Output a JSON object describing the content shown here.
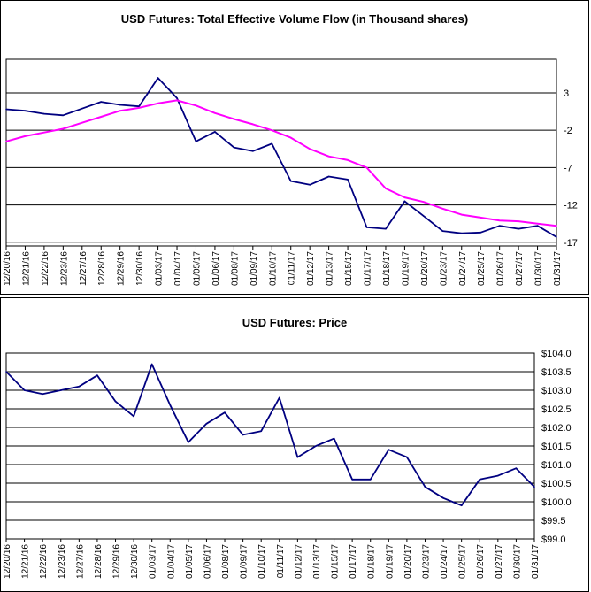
{
  "colors": {
    "volume": "#000080",
    "ma": "#ff00ff",
    "price": "#000080",
    "grid": "#000000"
  },
  "chart_data": [
    {
      "type": "line",
      "title": "USD Futures: Total Effective Volume Flow (in Thousand shares)",
      "categories": [
        "12/20/16",
        "12/21/16",
        "12/22/16",
        "12/23/16",
        "12/27/16",
        "12/28/16",
        "12/29/16",
        "12/30/16",
        "01/03/17",
        "01/04/17",
        "01/05/17",
        "01/06/17",
        "01/08/17",
        "01/09/17",
        "01/10/17",
        "01/11/17",
        "01/12/17",
        "01/13/17",
        "01/15/17",
        "01/17/17",
        "01/18/17",
        "01/19/17",
        "01/20/17",
        "01/23/17",
        "01/24/17",
        "01/25/17",
        "01/26/17",
        "01/27/17",
        "01/30/17",
        "01/31/17"
      ],
      "y_ticks": [
        3,
        -2,
        -7,
        -12,
        -17
      ],
      "ylim": [
        -17.5,
        7.5
      ],
      "grid": true,
      "series": [
        {
          "role": "volume",
          "values": [
            0.8,
            0.6,
            0.2,
            0.0,
            0.9,
            1.8,
            1.4,
            1.2,
            5.0,
            2.3,
            -3.5,
            -2.2,
            -4.3,
            -4.8,
            -3.8,
            -8.8,
            -9.3,
            -8.2,
            -8.6,
            -15.0,
            -15.2,
            -11.5,
            -13.5,
            -15.5,
            -15.8,
            -15.7,
            -14.8,
            -15.2,
            -14.8,
            -16.3
          ]
        },
        {
          "role": "moving-average",
          "values": [
            -3.5,
            -2.8,
            -2.3,
            -1.8,
            -1.0,
            -0.2,
            0.6,
            1.0,
            1.6,
            2.0,
            1.3,
            0.3,
            -0.5,
            -1.2,
            -2.0,
            -3.0,
            -4.5,
            -5.5,
            -6.0,
            -7.0,
            -9.8,
            -11.0,
            -11.6,
            -12.5,
            -13.3,
            -13.7,
            -14.1,
            -14.2,
            -14.5,
            -14.8
          ]
        }
      ]
    },
    {
      "type": "line",
      "title": "USD Futures: Price",
      "categories": [
        "12/20/16",
        "12/21/16",
        "12/22/16",
        "12/23/16",
        "12/27/16",
        "12/28/16",
        "12/29/16",
        "12/30/16",
        "01/03/17",
        "01/04/17",
        "01/05/17",
        "01/06/17",
        "01/08/17",
        "01/09/17",
        "01/10/17",
        "01/11/17",
        "01/12/17",
        "01/13/17",
        "01/15/17",
        "01/17/17",
        "01/18/17",
        "01/19/17",
        "01/20/17",
        "01/23/17",
        "01/24/17",
        "01/25/17",
        "01/26/17",
        "01/27/17",
        "01/30/17",
        "01/31/17"
      ],
      "y_ticks": [
        "$104.0",
        "$103.5",
        "$103.0",
        "$102.5",
        "$102.0",
        "$101.5",
        "$101.0",
        "$100.5",
        "$100.0",
        "$99.5",
        "$99.0"
      ],
      "ylim": [
        99.0,
        104.0
      ],
      "grid": true,
      "series": [
        {
          "role": "price",
          "values": [
            103.5,
            103.0,
            102.9,
            103.0,
            103.1,
            103.4,
            102.7,
            102.3,
            103.7,
            102.6,
            101.6,
            102.1,
            102.4,
            101.8,
            101.9,
            102.8,
            101.2,
            101.5,
            101.7,
            100.6,
            100.6,
            101.4,
            101.2,
            100.4,
            100.1,
            99.9,
            100.6,
            100.7,
            100.9,
            100.4
          ]
        }
      ]
    }
  ]
}
